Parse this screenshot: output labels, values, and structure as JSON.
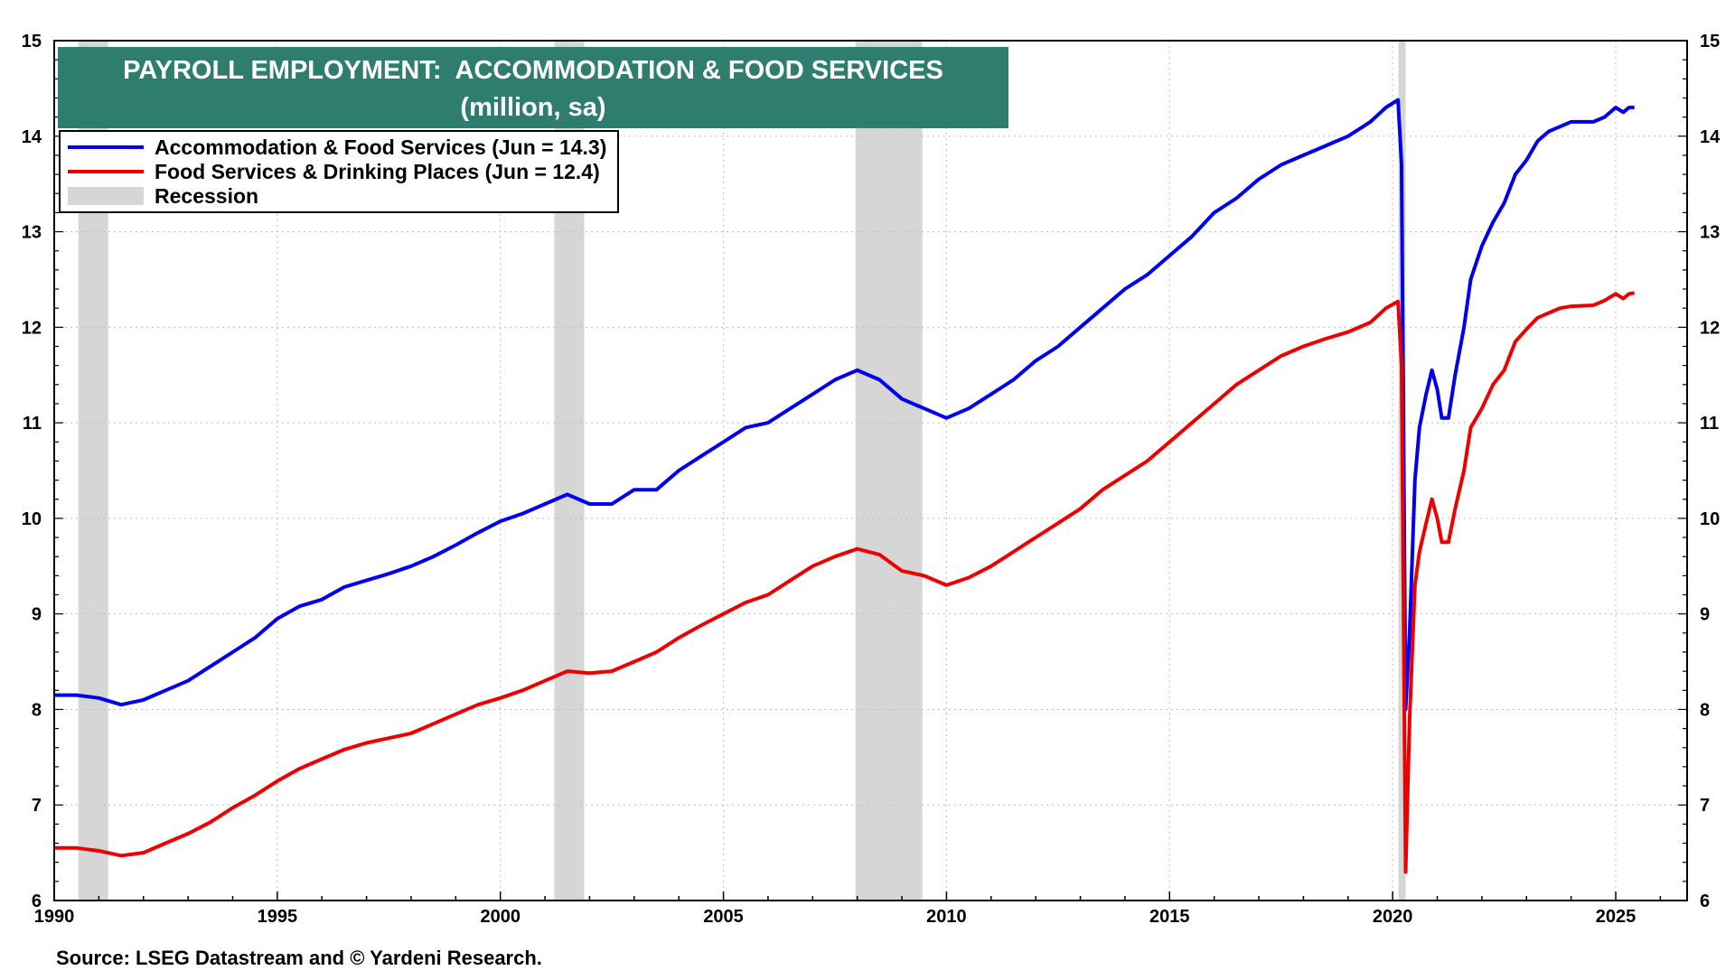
{
  "chart_data": {
    "type": "line",
    "title": "PAYROLL EMPLOYMENT:  ACCOMMODATION & FOOD SERVICES",
    "subtitle": "(million, sa)",
    "source": "Source: LSEG Datastream and © Yardeni Research.",
    "xlim": [
      1990,
      2026.6
    ],
    "ylim": [
      6,
      15
    ],
    "x_ticks": [
      {
        "value": 1990,
        "label": "1990"
      },
      {
        "value": 1995,
        "label": "1995"
      },
      {
        "value": 2000,
        "label": "2000"
      },
      {
        "value": 2005,
        "label": "2005"
      },
      {
        "value": 2010,
        "label": "2010"
      },
      {
        "value": 2015,
        "label": "2015"
      },
      {
        "value": 2020,
        "label": "2020"
      },
      {
        "value": 2025,
        "label": "2025"
      }
    ],
    "y_ticks": [
      {
        "value": 6,
        "label": "6"
      },
      {
        "value": 7,
        "label": "7"
      },
      {
        "value": 8,
        "label": "8"
      },
      {
        "value": 9,
        "label": "9"
      },
      {
        "value": 10,
        "label": "10"
      },
      {
        "value": 11,
        "label": "11"
      },
      {
        "value": 12,
        "label": "12"
      },
      {
        "value": 13,
        "label": "13"
      },
      {
        "value": 14,
        "label": "14"
      },
      {
        "value": 15,
        "label": "15"
      }
    ],
    "grid": true,
    "legend_position": "top-left",
    "recessions": [
      {
        "start": 1990.54,
        "end": 1991.21
      },
      {
        "start": 2001.21,
        "end": 2001.88
      },
      {
        "start": 2007.96,
        "end": 2009.46
      },
      {
        "start": 2020.13,
        "end": 2020.29
      }
    ],
    "legend": [
      {
        "label": "Accommodation & Food Services (Jun = 14.3)",
        "color": "#0000ee",
        "kind": "line"
      },
      {
        "label": "Food Services & Drinking Places (Jun = 12.4)",
        "color": "#ee0000",
        "kind": "line"
      },
      {
        "label": "Recession",
        "color": "#d6d6d6",
        "kind": "block"
      }
    ],
    "series": [
      {
        "name": "Accommodation & Food Services (Jun = 14.3)",
        "color": "#0000ee",
        "points": [
          [
            1990.0,
            8.15
          ],
          [
            1990.5,
            8.15
          ],
          [
            1991.0,
            8.12
          ],
          [
            1991.5,
            8.05
          ],
          [
            1992.0,
            8.1
          ],
          [
            1992.5,
            8.2
          ],
          [
            1993.0,
            8.3
          ],
          [
            1993.5,
            8.45
          ],
          [
            1994.0,
            8.6
          ],
          [
            1994.5,
            8.75
          ],
          [
            1995.0,
            8.95
          ],
          [
            1995.5,
            9.08
          ],
          [
            1996.0,
            9.15
          ],
          [
            1996.5,
            9.28
          ],
          [
            1997.0,
            9.35
          ],
          [
            1997.5,
            9.42
          ],
          [
            1998.0,
            9.5
          ],
          [
            1998.5,
            9.6
          ],
          [
            1999.0,
            9.72
          ],
          [
            1999.5,
            9.85
          ],
          [
            2000.0,
            9.97
          ],
          [
            2000.5,
            10.05
          ],
          [
            2001.0,
            10.15
          ],
          [
            2001.5,
            10.25
          ],
          [
            2002.0,
            10.15
          ],
          [
            2002.5,
            10.15
          ],
          [
            2003.0,
            10.3
          ],
          [
            2003.5,
            10.3
          ],
          [
            2004.0,
            10.5
          ],
          [
            2004.5,
            10.65
          ],
          [
            2005.0,
            10.8
          ],
          [
            2005.5,
            10.95
          ],
          [
            2006.0,
            11.0
          ],
          [
            2006.5,
            11.15
          ],
          [
            2007.0,
            11.3
          ],
          [
            2007.5,
            11.45
          ],
          [
            2008.0,
            11.55
          ],
          [
            2008.5,
            11.45
          ],
          [
            2009.0,
            11.25
          ],
          [
            2009.5,
            11.15
          ],
          [
            2010.0,
            11.05
          ],
          [
            2010.5,
            11.15
          ],
          [
            2011.0,
            11.3
          ],
          [
            2011.5,
            11.45
          ],
          [
            2012.0,
            11.65
          ],
          [
            2012.5,
            11.8
          ],
          [
            2013.0,
            12.0
          ],
          [
            2013.5,
            12.2
          ],
          [
            2014.0,
            12.4
          ],
          [
            2014.5,
            12.55
          ],
          [
            2015.0,
            12.75
          ],
          [
            2015.5,
            12.95
          ],
          [
            2016.0,
            13.2
          ],
          [
            2016.5,
            13.35
          ],
          [
            2017.0,
            13.55
          ],
          [
            2017.5,
            13.7
          ],
          [
            2018.0,
            13.8
          ],
          [
            2018.5,
            13.9
          ],
          [
            2019.0,
            14.0
          ],
          [
            2019.5,
            14.15
          ],
          [
            2019.85,
            14.3
          ],
          [
            2020.12,
            14.38
          ],
          [
            2020.2,
            13.7
          ],
          [
            2020.29,
            8.0
          ],
          [
            2020.38,
            8.8
          ],
          [
            2020.5,
            10.4
          ],
          [
            2020.6,
            10.95
          ],
          [
            2020.75,
            11.3
          ],
          [
            2020.88,
            11.55
          ],
          [
            2021.0,
            11.35
          ],
          [
            2021.1,
            11.05
          ],
          [
            2021.25,
            11.05
          ],
          [
            2021.4,
            11.5
          ],
          [
            2021.6,
            12.0
          ],
          [
            2021.75,
            12.5
          ],
          [
            2022.0,
            12.85
          ],
          [
            2022.25,
            13.1
          ],
          [
            2022.5,
            13.3
          ],
          [
            2022.75,
            13.6
          ],
          [
            2023.0,
            13.75
          ],
          [
            2023.25,
            13.95
          ],
          [
            2023.5,
            14.05
          ],
          [
            2023.75,
            14.1
          ],
          [
            2024.0,
            14.15
          ],
          [
            2024.5,
            14.15
          ],
          [
            2024.75,
            14.2
          ],
          [
            2025.0,
            14.3
          ],
          [
            2025.17,
            14.25
          ],
          [
            2025.3,
            14.3
          ],
          [
            2025.42,
            14.3
          ]
        ]
      },
      {
        "name": "Food Services & Drinking Places (Jun = 12.4)",
        "color": "#ee0000",
        "points": [
          [
            1990.0,
            6.55
          ],
          [
            1990.5,
            6.55
          ],
          [
            1991.0,
            6.52
          ],
          [
            1991.5,
            6.47
          ],
          [
            1992.0,
            6.5
          ],
          [
            1992.5,
            6.6
          ],
          [
            1993.0,
            6.7
          ],
          [
            1993.5,
            6.82
          ],
          [
            1994.0,
            6.97
          ],
          [
            1994.5,
            7.1
          ],
          [
            1995.0,
            7.25
          ],
          [
            1995.5,
            7.38
          ],
          [
            1996.0,
            7.48
          ],
          [
            1996.5,
            7.58
          ],
          [
            1997.0,
            7.65
          ],
          [
            1997.5,
            7.7
          ],
          [
            1998.0,
            7.75
          ],
          [
            1998.5,
            7.85
          ],
          [
            1999.0,
            7.95
          ],
          [
            1999.5,
            8.05
          ],
          [
            2000.0,
            8.12
          ],
          [
            2000.5,
            8.2
          ],
          [
            2001.0,
            8.3
          ],
          [
            2001.5,
            8.4
          ],
          [
            2002.0,
            8.38
          ],
          [
            2002.5,
            8.4
          ],
          [
            2003.0,
            8.5
          ],
          [
            2003.5,
            8.6
          ],
          [
            2004.0,
            8.75
          ],
          [
            2004.5,
            8.88
          ],
          [
            2005.0,
            9.0
          ],
          [
            2005.5,
            9.12
          ],
          [
            2006.0,
            9.2
          ],
          [
            2006.5,
            9.35
          ],
          [
            2007.0,
            9.5
          ],
          [
            2007.5,
            9.6
          ],
          [
            2008.0,
            9.68
          ],
          [
            2008.5,
            9.62
          ],
          [
            2009.0,
            9.45
          ],
          [
            2009.5,
            9.4
          ],
          [
            2010.0,
            9.3
          ],
          [
            2010.5,
            9.38
          ],
          [
            2011.0,
            9.5
          ],
          [
            2011.5,
            9.65
          ],
          [
            2012.0,
            9.8
          ],
          [
            2012.5,
            9.95
          ],
          [
            2013.0,
            10.1
          ],
          [
            2013.5,
            10.3
          ],
          [
            2014.0,
            10.45
          ],
          [
            2014.5,
            10.6
          ],
          [
            2015.0,
            10.8
          ],
          [
            2015.5,
            11.0
          ],
          [
            2016.0,
            11.2
          ],
          [
            2016.5,
            11.4
          ],
          [
            2017.0,
            11.55
          ],
          [
            2017.5,
            11.7
          ],
          [
            2018.0,
            11.8
          ],
          [
            2018.5,
            11.88
          ],
          [
            2019.0,
            11.95
          ],
          [
            2019.5,
            12.05
          ],
          [
            2019.85,
            12.2
          ],
          [
            2020.12,
            12.27
          ],
          [
            2020.2,
            11.6
          ],
          [
            2020.29,
            6.3
          ],
          [
            2020.38,
            7.9
          ],
          [
            2020.5,
            9.3
          ],
          [
            2020.6,
            9.65
          ],
          [
            2020.75,
            9.95
          ],
          [
            2020.88,
            10.2
          ],
          [
            2021.0,
            10.0
          ],
          [
            2021.1,
            9.75
          ],
          [
            2021.25,
            9.75
          ],
          [
            2021.4,
            10.1
          ],
          [
            2021.6,
            10.5
          ],
          [
            2021.75,
            10.95
          ],
          [
            2022.0,
            11.15
          ],
          [
            2022.25,
            11.4
          ],
          [
            2022.5,
            11.55
          ],
          [
            2022.75,
            11.85
          ],
          [
            2023.0,
            11.98
          ],
          [
            2023.25,
            12.1
          ],
          [
            2023.5,
            12.15
          ],
          [
            2023.75,
            12.2
          ],
          [
            2024.0,
            12.22
          ],
          [
            2024.5,
            12.23
          ],
          [
            2024.75,
            12.28
          ],
          [
            2025.0,
            12.35
          ],
          [
            2025.17,
            12.3
          ],
          [
            2025.3,
            12.35
          ],
          [
            2025.42,
            12.36
          ]
        ]
      }
    ]
  }
}
